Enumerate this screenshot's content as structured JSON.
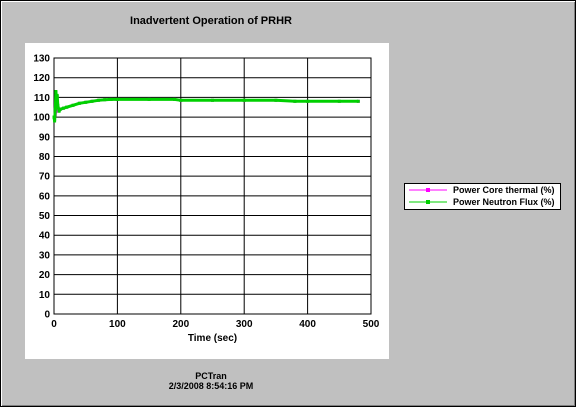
{
  "window": {
    "title": "Inadvertent Operation of PRHR",
    "footer_app": "PCTran",
    "footer_timestamp": "2/3/2008 8:54:16 PM"
  },
  "chart_data": {
    "type": "line",
    "title": "Inadvertent Operation of PRHR",
    "xlabel": "Time (sec)",
    "ylabel": "",
    "xlim": [
      0,
      500
    ],
    "ylim": [
      0,
      130
    ],
    "xticks": [
      "0",
      "100",
      "200",
      "300",
      "400",
      "500"
    ],
    "yticks": [
      "0",
      "10",
      "20",
      "30",
      "40",
      "50",
      "60",
      "70",
      "80",
      "90",
      "100",
      "110",
      "120",
      "130"
    ],
    "grid": true,
    "legend_position": "right",
    "series": [
      {
        "name": "Power Core thermal (%)",
        "color": "#ff00ff",
        "x": [
          0,
          2,
          4,
          6,
          8,
          10,
          15,
          20,
          30,
          40,
          50,
          60,
          70,
          80,
          90,
          100,
          150,
          190,
          200,
          250,
          300,
          350,
          380,
          400,
          450,
          480
        ],
        "y": [
          100,
          101,
          103,
          104,
          104,
          104,
          104.5,
          105,
          106,
          107,
          107.5,
          108,
          108.5,
          108.8,
          109,
          109,
          109,
          109,
          108.5,
          108.5,
          108.5,
          108.5,
          108,
          108,
          108,
          108
        ]
      },
      {
        "name": "Power Neutron Flux (%)",
        "color": "#00d000",
        "x": [
          0,
          1,
          2,
          3,
          4,
          5,
          6,
          8,
          10,
          15,
          20,
          30,
          40,
          50,
          60,
          70,
          80,
          90,
          100,
          150,
          190,
          200,
          250,
          300,
          350,
          380,
          400,
          450,
          480
        ],
        "y": [
          100,
          98,
          104,
          113,
          109,
          111,
          106,
          103,
          104,
          104.5,
          105,
          106,
          107,
          107.5,
          108,
          108.5,
          108.8,
          109,
          109,
          109,
          109,
          108.5,
          108.5,
          108.5,
          108.5,
          108,
          108,
          108,
          108
        ]
      }
    ]
  }
}
